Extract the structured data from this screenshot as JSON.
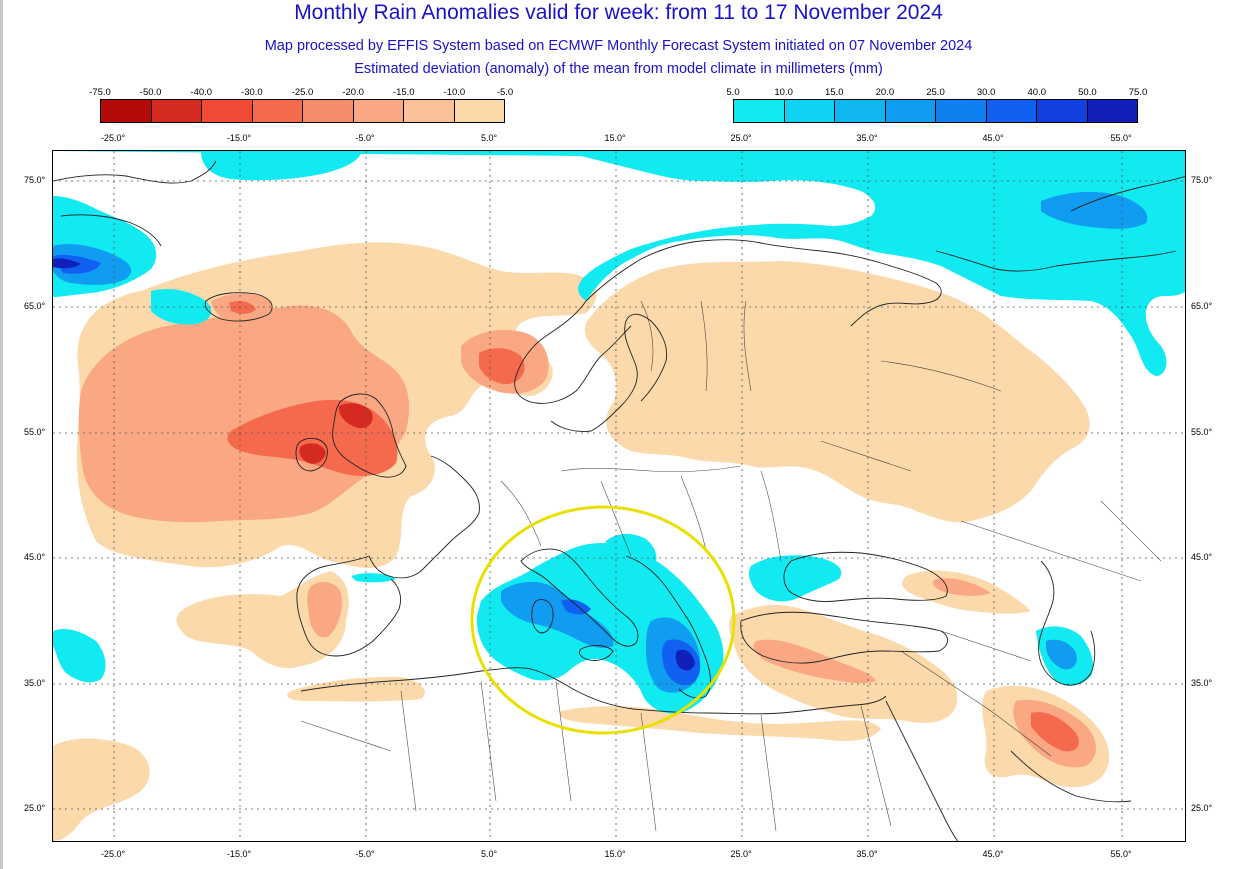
{
  "title": "Monthly Rain Anomalies valid for week: from 11 to 17 November 2024",
  "subtitle_1": "Map processed by EFFIS System based on ECMWF Monthly Forecast System initiated on 07 November 2024",
  "subtitle_2": "Estimated deviation (anomaly) of the mean from model climate in millimeters (mm)",
  "legend_dry": {
    "ticks": [
      "-75.0",
      "-50.0",
      "-40.0",
      "-30.0",
      "-25.0",
      "-20.0",
      "-15.0",
      "-10.0",
      "-5.0"
    ],
    "colors": [
      "#b40a0a",
      "#d52a22",
      "#f14a35",
      "#f56a4c",
      "#f78c6a",
      "#f9a883",
      "#fbc198",
      "#fbd9ab"
    ]
  },
  "legend_wet": {
    "ticks": [
      "5.0",
      "10.0",
      "15.0",
      "20.0",
      "25.0",
      "30.0",
      "40.0",
      "50.0",
      "75.0"
    ],
    "colors": [
      "#10eaf0",
      "#10d2f2",
      "#10b6f0",
      "#109cf0",
      "#1080f0",
      "#1060f2",
      "#1040e0",
      "#1020b8"
    ]
  },
  "longitude_labels": [
    "-25.0°",
    "-15.0°",
    "-5.0°",
    "5.0°",
    "15.0°",
    "25.0°",
    "35.0°",
    "45.0°",
    "55.0°"
  ],
  "latitude_labels": [
    "75.0°",
    "65.0°",
    "55.0°",
    "45.0°",
    "35.0°",
    "25.0°"
  ],
  "map": {
    "lon_range": [
      -30,
      60
    ],
    "lat_range": [
      22,
      77
    ],
    "colors": {
      "dry_light": "#fbd9ab",
      "dry_medium": "#f9a883",
      "dry_strong": "#f56a4c",
      "dry_extreme": "#d52a22",
      "wet_light": "#10eaf0",
      "wet_medium": "#109cf0",
      "wet_strong": "#1060f2",
      "wet_extreme": "#1020b8",
      "highlight_ring": "#e8e000",
      "coastline": "#222222"
    },
    "highlight": "Italy / central Mediterranean wet anomaly"
  }
}
